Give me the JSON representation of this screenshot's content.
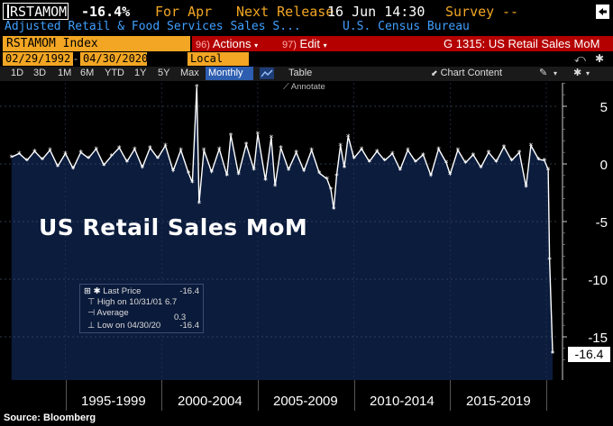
{
  "header": {
    "ticker": "RSTAMOM",
    "change": "-16.4%",
    "period": "For Apr",
    "next_release_label": "Next Release",
    "next_release_value": "16 Jun 14:30",
    "survey_label": "Survey",
    "survey_value": "--",
    "description": "Adjusted Retail & Food Services Sales S...",
    "source_agency": "U.S. Census Bureau"
  },
  "toolbar": {
    "index_name": "RSTAMOM Index",
    "actions_num": "96)",
    "actions_label": "Actions",
    "edit_num": "97)",
    "edit_label": "Edit",
    "graph_title": "G 1315: US Retail Sales MoM"
  },
  "dates": {
    "start": "02/29/1992",
    "end": "04/30/2020",
    "currency": "Local CCY"
  },
  "ranges": [
    "1D",
    "3D",
    "1M",
    "6M",
    "YTD",
    "1Y",
    "5Y",
    "Max"
  ],
  "frequency": "Monthly",
  "table_label": "Table",
  "chart_content_label": "Chart Content",
  "annotate_label": "Annotate",
  "title_overlay": "US Retail Sales MoM",
  "legend": {
    "last_label": "Last Price",
    "last_value": "-16.4",
    "high_label": "High on 10/31/01",
    "high_value": "6.7",
    "avg_label": "Average",
    "avg_value": "0.3",
    "low_label": "Low on 04/30/20",
    "low_value": "-16.4"
  },
  "last_tag": "-16.4",
  "source": "Source: Bloomberg",
  "colors": {
    "plot_bg": "#0b1c3d",
    "orange": "#f2a623",
    "red": "#b50000",
    "blue_text": "#3fa0ff",
    "yellow_text": "#f2a623"
  },
  "chart_data": {
    "type": "area",
    "title": "US Retail Sales MoM",
    "xlabel": "",
    "ylabel": "%",
    "ylim": [
      -17.5,
      7
    ],
    "y_ticks": [
      5,
      0,
      -5,
      -10,
      -15
    ],
    "x_range": [
      1992.2,
      2020.33
    ],
    "x_tick_labels": [
      "1995-1999",
      "2000-2004",
      "2005-2009",
      "2010-2014",
      "2015-2019"
    ],
    "x_tick_centers": [
      1997.5,
      2002.5,
      2007.5,
      2012.5,
      2017.5
    ],
    "x_boundaries": [
      1995,
      2000,
      2005,
      2010,
      2015,
      2020
    ],
    "series": [
      {
        "name": "RSTAMOM Index",
        "points": [
          [
            1992.2,
            0.6
          ],
          [
            1992.6,
            0.9
          ],
          [
            1993.0,
            0.3
          ],
          [
            1993.4,
            1.1
          ],
          [
            1993.8,
            0.4
          ],
          [
            1994.2,
            1.2
          ],
          [
            1994.6,
            -0.2
          ],
          [
            1995.0,
            0.9
          ],
          [
            1995.4,
            -0.4
          ],
          [
            1995.8,
            1.0
          ],
          [
            1996.2,
            0.5
          ],
          [
            1996.6,
            1.3
          ],
          [
            1997.0,
            -0.1
          ],
          [
            1997.4,
            0.7
          ],
          [
            1997.8,
            1.4
          ],
          [
            1998.2,
            0.2
          ],
          [
            1998.6,
            1.3
          ],
          [
            1999.0,
            -0.3
          ],
          [
            1999.4,
            1.4
          ],
          [
            1999.8,
            0.5
          ],
          [
            2000.2,
            1.6
          ],
          [
            2000.6,
            -0.6
          ],
          [
            2001.0,
            1.2
          ],
          [
            2001.4,
            -0.8
          ],
          [
            2001.6,
            -1.6
          ],
          [
            2001.83,
            6.7
          ],
          [
            2001.95,
            -3.4
          ],
          [
            2002.2,
            1.2
          ],
          [
            2002.6,
            -0.7
          ],
          [
            2003.0,
            1.3
          ],
          [
            2003.4,
            -1.0
          ],
          [
            2003.6,
            2.5
          ],
          [
            2004.0,
            -0.9
          ],
          [
            2004.4,
            1.7
          ],
          [
            2004.8,
            -0.5
          ],
          [
            2005.0,
            2.6
          ],
          [
            2005.4,
            -1.4
          ],
          [
            2005.7,
            2.3
          ],
          [
            2005.9,
            -1.9
          ],
          [
            2006.2,
            1.4
          ],
          [
            2006.6,
            -0.5
          ],
          [
            2007.0,
            1.0
          ],
          [
            2007.4,
            -0.6
          ],
          [
            2007.8,
            1.2
          ],
          [
            2008.2,
            -0.8
          ],
          [
            2008.6,
            -1.3
          ],
          [
            2008.8,
            -2.2
          ],
          [
            2008.95,
            -3.9
          ],
          [
            2009.1,
            -1.0
          ],
          [
            2009.3,
            1.6
          ],
          [
            2009.5,
            -0.3
          ],
          [
            2009.7,
            2.4
          ],
          [
            2010.0,
            0.5
          ],
          [
            2010.4,
            1.3
          ],
          [
            2010.8,
            0.2
          ],
          [
            2011.2,
            1.1
          ],
          [
            2011.6,
            0.3
          ],
          [
            2012.0,
            0.9
          ],
          [
            2012.4,
            -0.5
          ],
          [
            2012.8,
            1.2
          ],
          [
            2013.2,
            0.2
          ],
          [
            2013.6,
            0.8
          ],
          [
            2014.0,
            -1.0
          ],
          [
            2014.4,
            1.3
          ],
          [
            2014.8,
            0.1
          ],
          [
            2015.0,
            -0.9
          ],
          [
            2015.4,
            1.2
          ],
          [
            2015.8,
            0.1
          ],
          [
            2016.2,
            0.8
          ],
          [
            2016.6,
            -0.3
          ],
          [
            2017.0,
            1.0
          ],
          [
            2017.4,
            0.2
          ],
          [
            2017.8,
            1.5
          ],
          [
            2018.2,
            0.3
          ],
          [
            2018.6,
            1.0
          ],
          [
            2018.95,
            -2.0
          ],
          [
            2019.2,
            1.6
          ],
          [
            2019.6,
            0.4
          ],
          [
            2019.9,
            0.3
          ],
          [
            2020.1,
            -0.5
          ],
          [
            2020.17,
            -8.3
          ],
          [
            2020.33,
            -16.4
          ]
        ]
      }
    ]
  }
}
